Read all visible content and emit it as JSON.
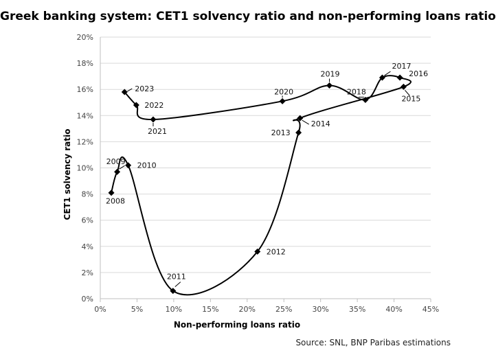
{
  "chart_data": {
    "type": "scatter",
    "title": "Greek banking system: CET1 solvency ratio and non-performing loans ratio",
    "xlabel": "Non-performing loans ratio",
    "ylabel": "CET1 solvency ratio",
    "xlim": [
      0,
      45
    ],
    "ylim": [
      0,
      20
    ],
    "x_ticks": [
      0,
      5,
      10,
      15,
      20,
      25,
      30,
      35,
      40,
      45
    ],
    "x_tick_labels": [
      "0%",
      "5%",
      "10%",
      "15%",
      "20%",
      "25%",
      "30%",
      "35%",
      "40%",
      "45%"
    ],
    "y_ticks": [
      0,
      2,
      4,
      6,
      8,
      10,
      12,
      14,
      16,
      18,
      20
    ],
    "y_tick_labels": [
      "0%",
      "2%",
      "4%",
      "6%",
      "8%",
      "10%",
      "12%",
      "14%",
      "16%",
      "18%",
      "20%"
    ],
    "grid": "horizontal",
    "series": [
      {
        "name": "Greek banking system",
        "points": [
          {
            "label": "2008",
            "x": 1.5,
            "y": 8.1
          },
          {
            "label": "2009",
            "x": 2.3,
            "y": 9.7
          },
          {
            "label": "2010",
            "x": 3.8,
            "y": 10.2
          },
          {
            "label": "2011",
            "x": 9.9,
            "y": 0.6
          },
          {
            "label": "2012",
            "x": 21.4,
            "y": 3.6
          },
          {
            "label": "2013",
            "x": 27.0,
            "y": 12.7
          },
          {
            "label": "2014",
            "x": 27.2,
            "y": 13.8
          },
          {
            "label": "2015",
            "x": 41.3,
            "y": 16.2
          },
          {
            "label": "2016",
            "x": 40.8,
            "y": 16.9
          },
          {
            "label": "2017",
            "x": 38.4,
            "y": 16.9
          },
          {
            "label": "2018",
            "x": 36.1,
            "y": 15.2
          },
          {
            "label": "2019",
            "x": 31.2,
            "y": 16.3
          },
          {
            "label": "2020",
            "x": 24.8,
            "y": 15.1
          },
          {
            "label": "2021",
            "x": 7.2,
            "y": 13.7
          },
          {
            "label": "2022",
            "x": 4.9,
            "y": 14.8
          },
          {
            "label": "2023",
            "x": 3.3,
            "y": 15.8
          }
        ]
      }
    ]
  },
  "source": "Source: SNL, BNP Paribas estimations"
}
